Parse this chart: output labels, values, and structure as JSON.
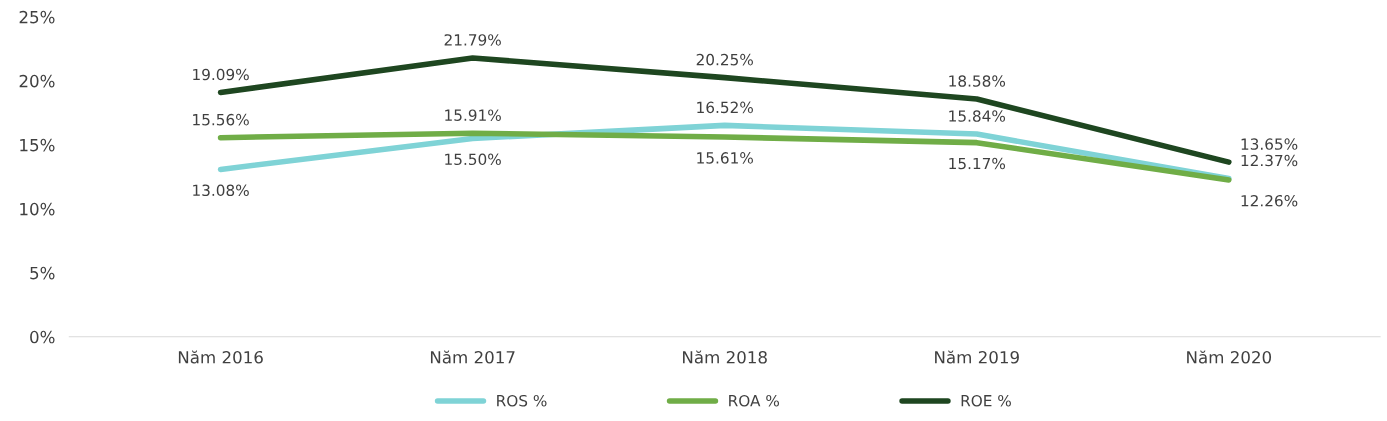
{
  "chart_data": {
    "type": "line",
    "categories": [
      "Năm 2016",
      "Năm 2017",
      "Năm 2018",
      "Năm 2019",
      "Năm 2020"
    ],
    "series": [
      {
        "name": "ROS %",
        "color": "#7fd3d6",
        "values": [
          13.08,
          15.5,
          16.52,
          15.84,
          12.37
        ],
        "value_labels": [
          "13.08%",
          "15.50%",
          "16.52%",
          "15.84%",
          "12.37%"
        ]
      },
      {
        "name": "ROA %",
        "color": "#70ad47",
        "values": [
          15.56,
          15.91,
          15.61,
          15.17,
          12.26
        ],
        "value_labels": [
          "15.56%",
          "15.91%",
          "15.61%",
          "15.17%",
          "12.26%"
        ]
      },
      {
        "name": "ROE %",
        "color": "#1e4620",
        "values": [
          19.09,
          21.79,
          20.25,
          18.58,
          13.65
        ],
        "value_labels": [
          "19.09%",
          "21.79%",
          "20.25%",
          "18.58%",
          "13.65%"
        ]
      }
    ],
    "ylim": [
      0,
      25
    ],
    "yticks": [
      {
        "value": 0,
        "label": "0%"
      },
      {
        "value": 5,
        "label": "5%"
      },
      {
        "value": 10,
        "label": "10%"
      },
      {
        "value": 15,
        "label": "15%"
      },
      {
        "value": 20,
        "label": "20%"
      },
      {
        "value": 25,
        "label": "25%"
      }
    ],
    "grid": false,
    "legend": "bottom",
    "marker": "none",
    "line_style": "solid"
  }
}
